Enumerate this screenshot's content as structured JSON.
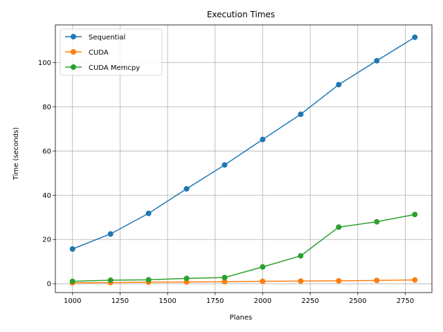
{
  "chart_data": {
    "type": "line",
    "title": "Execution Times",
    "xlabel": "Planes",
    "ylabel": "Time (seconds)",
    "x": [
      1000,
      1200,
      1400,
      1600,
      1800,
      2000,
      2200,
      2400,
      2600,
      2800
    ],
    "xlim": [
      910,
      2890
    ],
    "ylim": [
      -4,
      117
    ],
    "xticks": [
      1000,
      1250,
      1500,
      1750,
      2000,
      2250,
      2500,
      2750
    ],
    "yticks": [
      0,
      20,
      40,
      60,
      80,
      100
    ],
    "grid": true,
    "legend_position": "top-left",
    "series": [
      {
        "name": "Sequential",
        "color": "#1f77b4",
        "values": [
          15.7,
          22.5,
          31.8,
          42.9,
          53.7,
          65.2,
          76.6,
          90.0,
          100.8,
          111.4
        ]
      },
      {
        "name": "CUDA",
        "color": "#ff7f0e",
        "values": [
          0.4,
          0.5,
          0.7,
          0.8,
          0.9,
          1.1,
          1.2,
          1.3,
          1.5,
          1.7
        ]
      },
      {
        "name": "CUDA Memcpy",
        "color": "#2ca02c",
        "values": [
          1.1,
          1.6,
          1.8,
          2.4,
          2.8,
          7.6,
          12.6,
          25.6,
          28.0,
          31.3
        ]
      }
    ]
  }
}
